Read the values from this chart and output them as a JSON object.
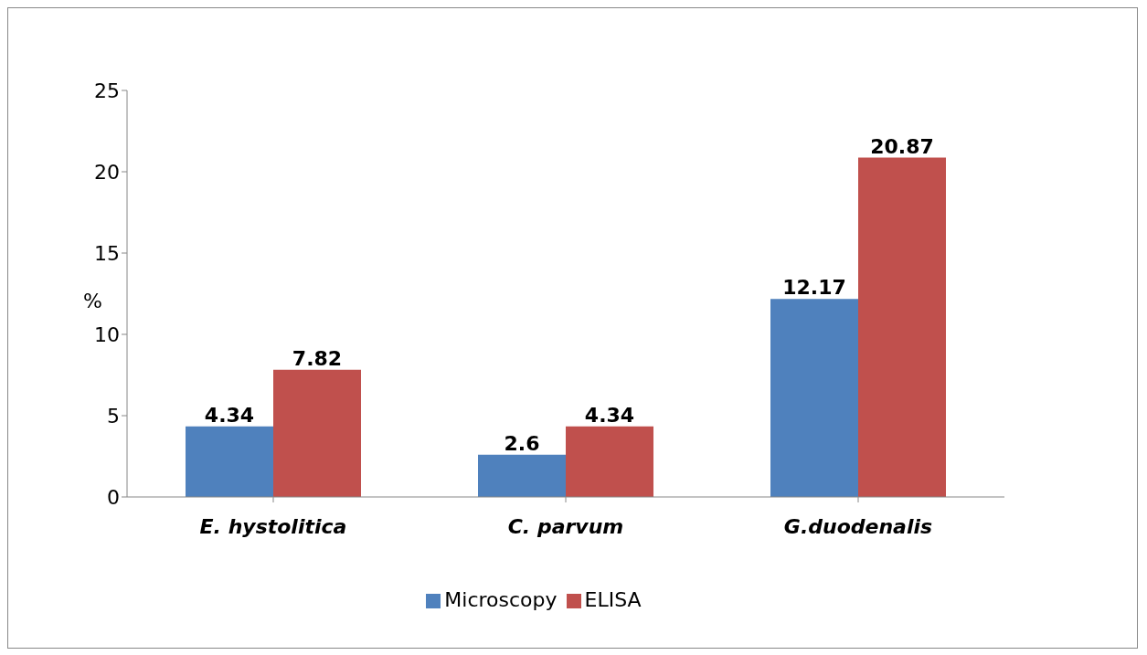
{
  "chart_data": {
    "type": "bar",
    "categories": [
      "E. hystolitica",
      "C. parvum",
      "G.duodenalis"
    ],
    "series": [
      {
        "name": "Microscopy",
        "color": "#4f81bd",
        "values": [
          4.34,
          2.6,
          12.17
        ]
      },
      {
        "name": "ELISA",
        "color": "#c0504d",
        "values": [
          7.82,
          4.34,
          20.87
        ]
      }
    ],
    "ylabel": "%",
    "ylim": [
      0,
      25
    ],
    "yticks": [
      0,
      5,
      10,
      15,
      20,
      25
    ],
    "grid": false,
    "legend": "bottom",
    "data_labels": true
  }
}
